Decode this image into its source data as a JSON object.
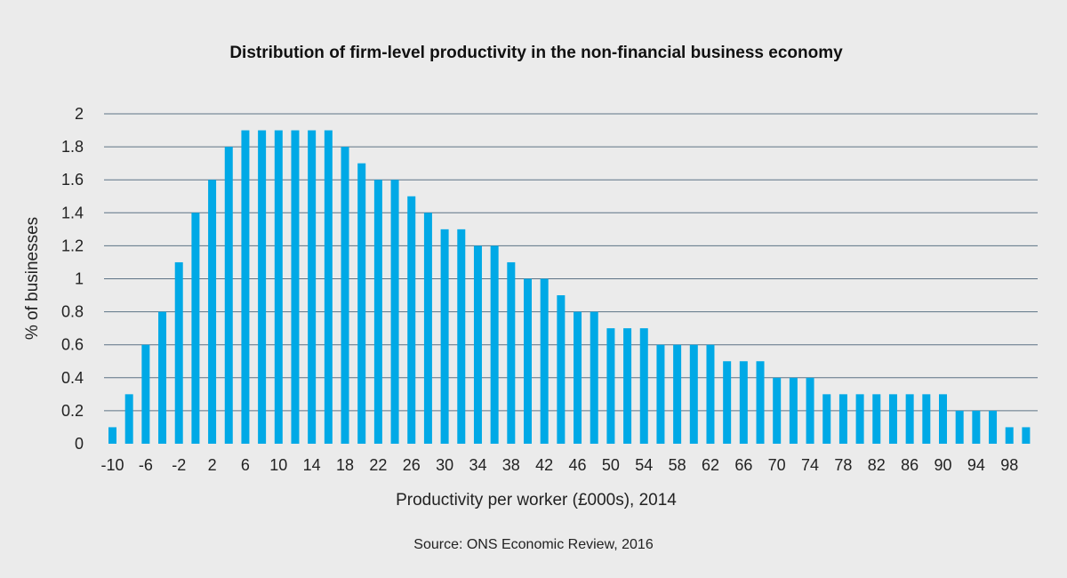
{
  "chart_data": {
    "type": "bar",
    "title": "Distribution of firm-level productivity in the non-financial business economy",
    "xlabel": "Productivity per worker (£000s), 2014",
    "ylabel": "% of businesses",
    "source": "Source: ONS Economic Review, 2016",
    "ylim": [
      0,
      2
    ],
    "yticks": [
      "0",
      "0.2",
      "0.4",
      "0.6",
      "0.8",
      "1",
      "1.2",
      "1.4",
      "1.6",
      "1.8",
      "2"
    ],
    "categories": [
      -10,
      -8,
      -6,
      -4,
      -2,
      0,
      2,
      4,
      6,
      8,
      10,
      12,
      14,
      16,
      18,
      20,
      22,
      24,
      26,
      28,
      30,
      32,
      34,
      36,
      38,
      40,
      42,
      44,
      46,
      48,
      50,
      52,
      54,
      56,
      58,
      60,
      62,
      64,
      66,
      68,
      70,
      72,
      74,
      76,
      78,
      80,
      82,
      84,
      86,
      88,
      90,
      92,
      94,
      96,
      98,
      100
    ],
    "xtick_labels": [
      "-10",
      "-6",
      "-2",
      "2",
      "6",
      "10",
      "14",
      "18",
      "22",
      "26",
      "30",
      "34",
      "38",
      "42",
      "46",
      "50",
      "54",
      "58",
      "62",
      "66",
      "70",
      "74",
      "78",
      "82",
      "86",
      "90",
      "94",
      "98"
    ],
    "values": [
      0.1,
      0.3,
      0.6,
      0.8,
      1.1,
      1.4,
      1.6,
      1.8,
      1.9,
      1.9,
      1.9,
      1.9,
      1.9,
      1.9,
      1.8,
      1.7,
      1.6,
      1.6,
      1.5,
      1.4,
      1.3,
      1.3,
      1.2,
      1.2,
      1.1,
      1.0,
      1.0,
      0.9,
      0.8,
      0.8,
      0.7,
      0.7,
      0.7,
      0.6,
      0.6,
      0.6,
      0.6,
      0.5,
      0.5,
      0.5,
      0.4,
      0.4,
      0.4,
      0.3,
      0.3,
      0.3,
      0.3,
      0.3,
      0.3,
      0.3,
      0.3,
      0.2,
      0.2,
      0.2,
      0.1,
      0.1
    ],
    "bar_color": "#00a9e6",
    "grid": true
  }
}
